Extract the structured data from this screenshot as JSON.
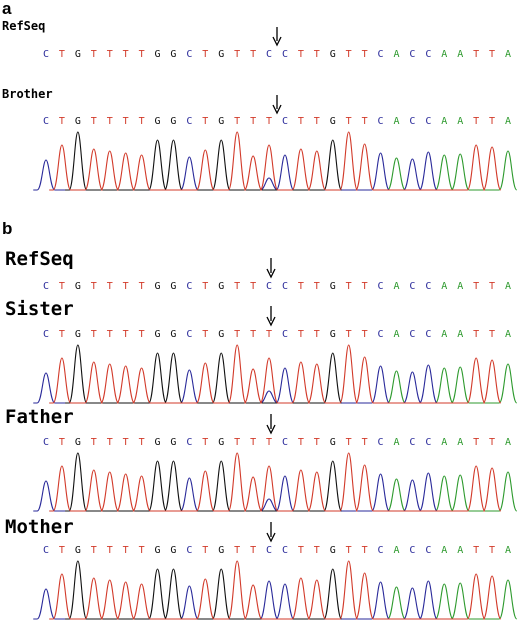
{
  "panels": [
    {
      "label": "a",
      "tracks": [
        {
          "name": "RefSeq",
          "sequence": "CTGTTTTGGCTGTTCCTTGTTCACCAATTA",
          "chromatogram": false,
          "arrow_index": 15
        },
        {
          "name": "Brother",
          "sequence": "CTGTTTTGGCTGTTTCTTGTTCACCAATTA",
          "chromatogram": true,
          "arrow_index": 15
        }
      ]
    },
    {
      "label": "b",
      "tracks": [
        {
          "name": "RefSeq",
          "sequence": "CTGTTTTGGCTGTTCCTTGTTCACCAATTA",
          "chromatogram": false,
          "arrow_index": 15
        },
        {
          "name": "Sister",
          "sequence": "CTGTTTTGGCTGTTTCTTGTTCACCAATTA",
          "chromatogram": true,
          "arrow_index": 15
        },
        {
          "name": "Father",
          "sequence": "CTGTTTTGGCTGTTTCTTGTTCACCAATTA",
          "chromatogram": true,
          "arrow_index": 15
        },
        {
          "name": "Mother",
          "sequence": "CTGTTTTGGCTGTTCCTTGTTCACCAATTA",
          "chromatogram": true,
          "arrow_index": 15
        }
      ]
    }
  ],
  "base_colors": {
    "A": "#2e9a2e",
    "C": "#2a2a9a",
    "G": "#111111",
    "T": "#d23a2a"
  }
}
